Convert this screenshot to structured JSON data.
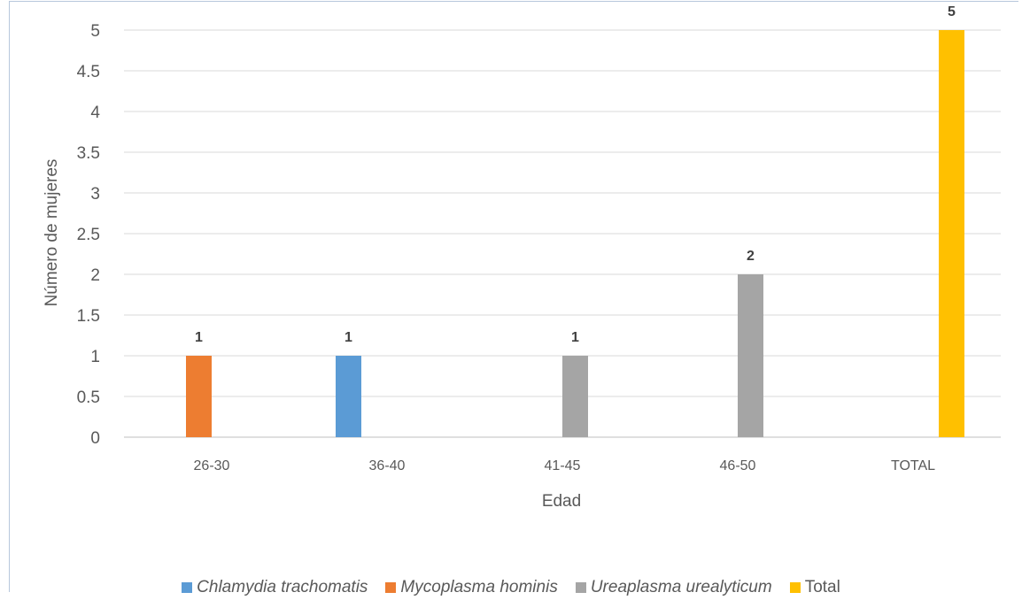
{
  "chart_data": {
    "type": "bar",
    "xlabel": "Edad",
    "ylabel": "Número de mujeres",
    "ylim": [
      0,
      5
    ],
    "yticks": [
      "0",
      "0.5",
      "1",
      "1.5",
      "2",
      "2.5",
      "3",
      "3.5",
      "4",
      "4.5",
      "5"
    ],
    "categories": [
      "26-30",
      "36-40",
      "41-45",
      "46-50",
      "TOTAL"
    ],
    "grid": true,
    "legend_position": "bottom",
    "series": [
      {
        "name": "Chlamydia trachomatis",
        "color": "#5b9bd5",
        "italic": true,
        "values": [
          0,
          1,
          0,
          0,
          0
        ]
      },
      {
        "name": "Mycoplasma hominis",
        "color": "#ed7d31",
        "italic": true,
        "values": [
          1,
          0,
          0,
          0,
          0
        ]
      },
      {
        "name": "Ureaplasma urealyticum",
        "color": "#a5a5a5",
        "italic": true,
        "values": [
          0,
          0,
          1,
          2,
          0
        ]
      },
      {
        "name": "Total",
        "color": "#ffc000",
        "italic": false,
        "values": [
          0,
          0,
          0,
          0,
          5
        ]
      }
    ],
    "data_labels": [
      {
        "category": "26-30",
        "series": "Mycoplasma hominis",
        "text": "1"
      },
      {
        "category": "36-40",
        "series": "Chlamydia trachomatis",
        "text": "1"
      },
      {
        "category": "41-45",
        "series": "Ureaplasma urealyticum",
        "text": "1"
      },
      {
        "category": "46-50",
        "series": "Ureaplasma urealyticum",
        "text": "2"
      },
      {
        "category": "TOTAL",
        "series": "Total",
        "text": "5"
      }
    ]
  }
}
